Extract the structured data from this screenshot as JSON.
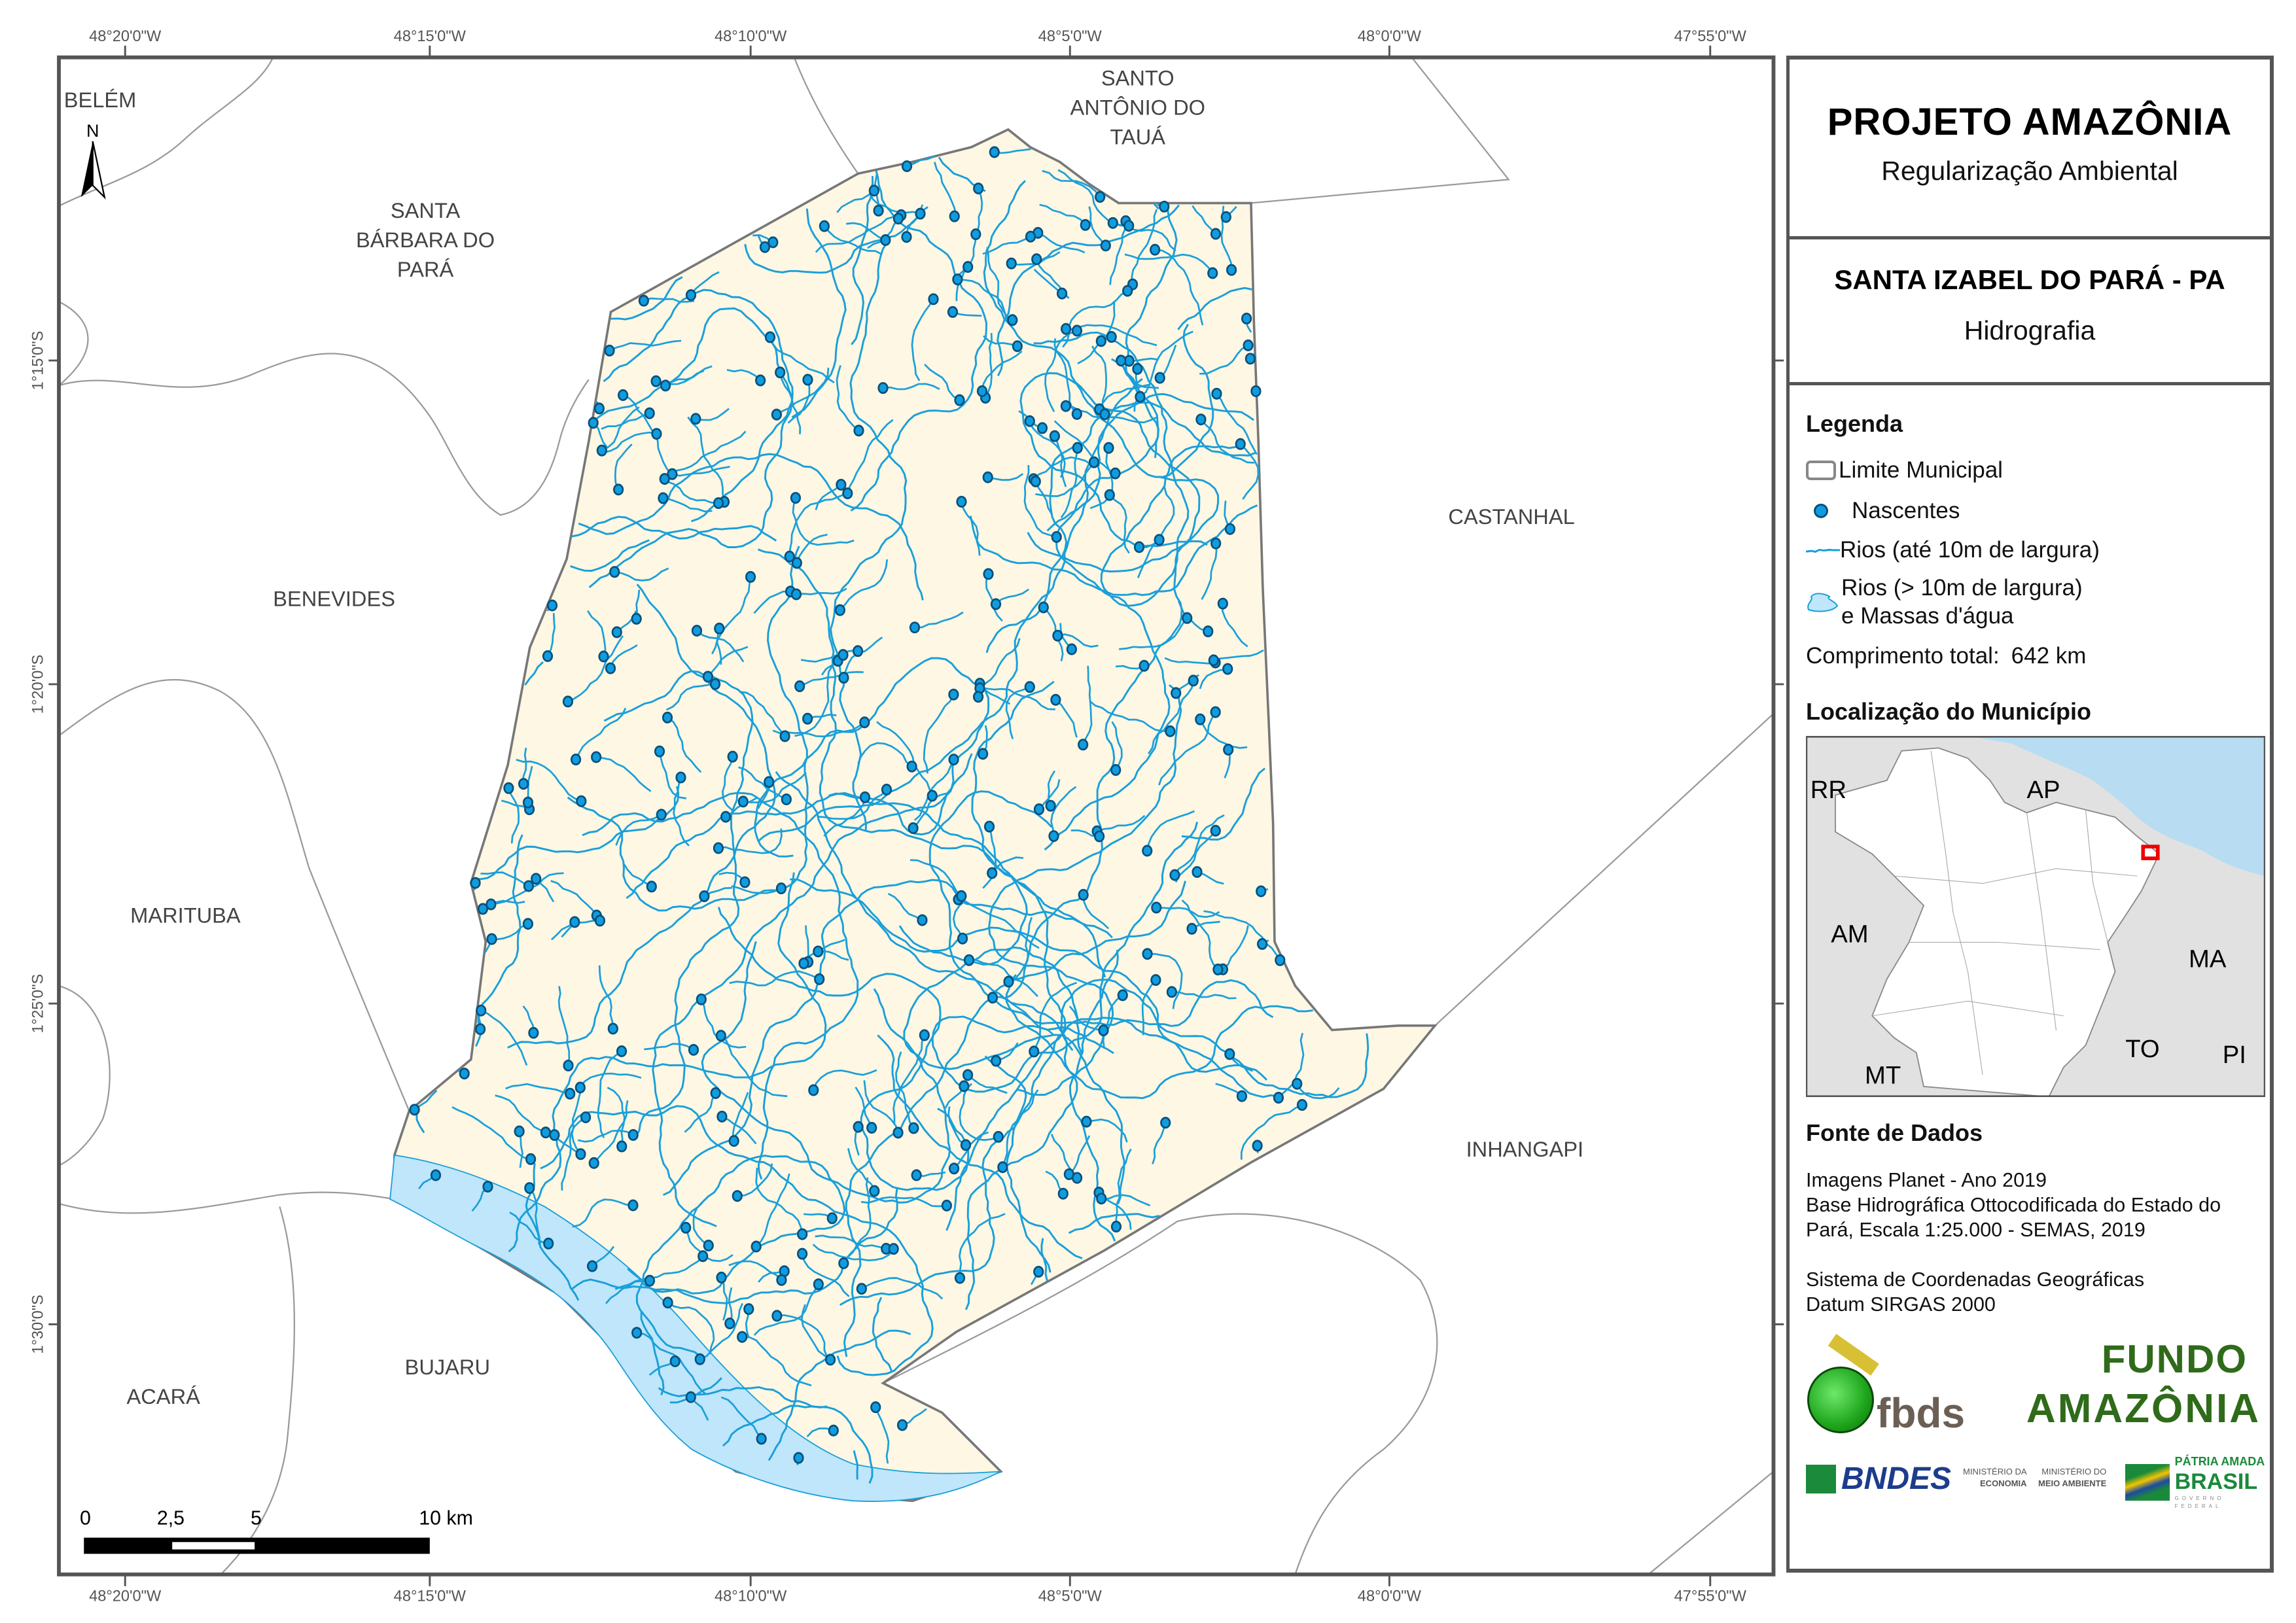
{
  "header": {
    "title": "PROJETO AMAZÔNIA",
    "subtitle": "Regularização Ambiental",
    "municipality": "SANTA IZABEL DO PARÁ - PA",
    "theme": "Hidrografia"
  },
  "legend": {
    "title": "Legenda",
    "items": [
      {
        "icon": "municipal-boundary-swatch",
        "label": "Limite Municipal"
      },
      {
        "icon": "spring-dot",
        "label": "Nascentes"
      },
      {
        "icon": "river-line",
        "label": "Rios (até 10m de largura)"
      },
      {
        "icon": "water-body-swatch",
        "label_line1": "Rios (> 10m de largura)",
        "label_line2": "e Massas d'água"
      }
    ],
    "total_length_label": "Comprimento total:",
    "total_length_value": "642 km"
  },
  "location": {
    "title": "Localização do Município",
    "states": [
      "RR",
      "AP",
      "AM",
      "MA",
      "MT",
      "TO",
      "PI"
    ]
  },
  "sources": {
    "title": "Fonte de Dados",
    "lines": [
      "Imagens Planet - Ano 2019",
      "Base Hidrográfica Ottocodificada do Estado do",
      "Pará, Escala 1:25.000 - SEMAS, 2019"
    ],
    "crs_lines": [
      "Sistema de Coordenadas Geográficas",
      "Datum SIRGAS 2000"
    ]
  },
  "logos": {
    "fbds": "fbds",
    "fundo_line1": "FUNDO",
    "fundo_line2": "AMAZÔNIA",
    "bndes": "BNDES",
    "min_economia_1": "MINISTÉRIO DA",
    "min_economia_2": "ECONOMIA",
    "min_ambiente_1": "MINISTÉRIO DO",
    "min_ambiente_2": "MEIO AMBIENTE",
    "brasil_1": "PÁTRIA AMADA",
    "brasil_2": "BRASIL",
    "brasil_3": "GOVERNO FEDERAL"
  },
  "map": {
    "north_label": "N",
    "lon_ticks": [
      "48°20'0\"W",
      "48°15'0\"W",
      "48°10'0\"W",
      "48°5'0\"W",
      "48°0'0\"W",
      "47°55'0\"W"
    ],
    "lat_ticks": [
      "1°15'0\"S",
      "1°20'0\"S",
      "1°25'0\"S",
      "1°30'0\"S"
    ],
    "places": {
      "belem": "BELÉM",
      "santo_antonio": [
        "SANTO",
        "ANTÔNIO DO",
        "TAUÁ"
      ],
      "santa_barbara": [
        "SANTA",
        "BÁRBARA DO",
        "PARÁ"
      ],
      "benevides": "BENEVIDES",
      "castanhal": "CASTANHAL",
      "marituba": "MARITUBA",
      "inhangapi": "INHANGAPI",
      "bujaru": "BUJARU",
      "acara": "ACARÁ"
    },
    "scale_labels": [
      "0",
      "2,5",
      "5",
      "10 km"
    ],
    "colors": {
      "municipality_fill": "#fdf7e4",
      "river": "#1a9fd9",
      "spring_fill": "#0f9ddf",
      "spring_stroke": "#0b4f7a",
      "water_body": "#bfe6fa",
      "boundary": "#777777",
      "neighbor_boundary": "#9a9a9a"
    }
  }
}
